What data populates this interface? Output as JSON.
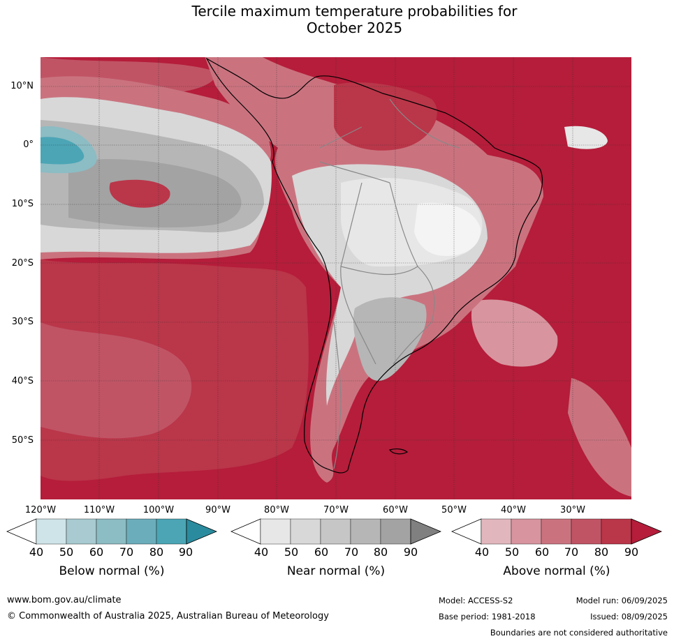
{
  "title": {
    "line1": "Tercile maximum temperature probabilities for",
    "line2": "October 2025"
  },
  "lat_labels": [
    "10°N",
    "0°",
    "10°S",
    "20°S",
    "30°S",
    "40°S",
    "50°S"
  ],
  "lon_labels": [
    "120°W",
    "110°W",
    "100°W",
    "90°W",
    "80°W",
    "70°W",
    "60°W",
    "50°W",
    "40°W",
    "30°W"
  ],
  "colorbars": [
    {
      "title": "Below normal (%)",
      "ticks": [
        "40",
        "50",
        "60",
        "70",
        "80",
        "90"
      ],
      "colors": [
        "#ffffff",
        "#cfe4e9",
        "#a8cad0",
        "#8cbcc4",
        "#6cadbb",
        "#4ba5b5",
        "#2b8b9e"
      ]
    },
    {
      "title": "Near normal (%)",
      "ticks": [
        "40",
        "50",
        "60",
        "70",
        "80",
        "90"
      ],
      "colors": [
        "#ffffff",
        "#e7e7e7",
        "#d8d8d8",
        "#c6c6c6",
        "#b6b6b6",
        "#a3a3a3",
        "#808080"
      ]
    },
    {
      "title": "Above normal (%)",
      "ticks": [
        "40",
        "50",
        "60",
        "70",
        "80",
        "90"
      ],
      "colors": [
        "#ffffff",
        "#e2b6bd",
        "#d8959f",
        "#ca737f",
        "#c05465",
        "#ba3649",
        "#b51d3a"
      ]
    }
  ],
  "footer": {
    "url": "www.bom.gov.au/climate",
    "copyright": "© Commonwealth of Australia 2025, Australian Bureau of Meteorology",
    "model": "Model: ACCESS-S2",
    "base_period": "Base period: 1981-2018",
    "model_run": "Model run: 06/09/2025",
    "issued": "Issued: 08/09/2025",
    "disclaimer": "Boundaries are not considered authoritative"
  },
  "map_colors": {
    "above_90": "#b51d3a",
    "above_80": "#ba3649",
    "above_70": "#c05465",
    "above_60": "#ca737f",
    "above_50": "#d8959f",
    "above_40": "#e2b6bd",
    "near_40": "#e7e7e7",
    "near_50": "#d8d8d8",
    "near_60": "#c6c6c6",
    "near_70": "#b6b6b6",
    "near_80": "#a3a3a3",
    "below_60": "#8cbcc4",
    "below_80": "#4ba5b5",
    "white": "#f4f4f4"
  }
}
